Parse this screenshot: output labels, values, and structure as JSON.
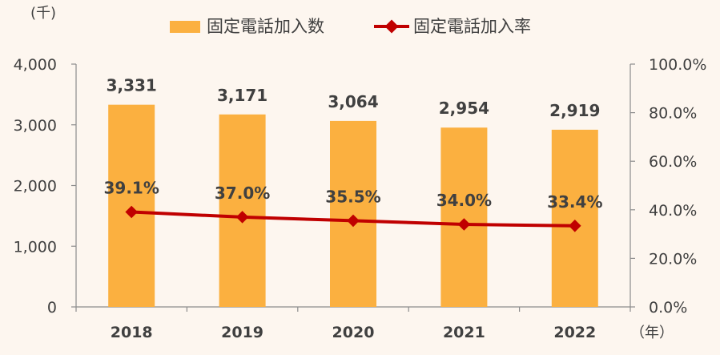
{
  "chart_data": {
    "type": "bar",
    "categories": [
      "2018",
      "2019",
      "2020",
      "2021",
      "2022"
    ],
    "series": [
      {
        "name": "固定電話加入数",
        "type": "bar",
        "axis": "left",
        "values": [
          3331,
          3171,
          3064,
          2954,
          2919
        ],
        "labels": [
          "3,331",
          "3,171",
          "3,064",
          "2,954",
          "2,919"
        ],
        "color": "#FBB040"
      },
      {
        "name": "固定電話加入率",
        "type": "line",
        "axis": "right",
        "values": [
          39.1,
          37.0,
          35.5,
          34.0,
          33.4
        ],
        "labels": [
          "39.1%",
          "37.0%",
          "35.5%",
          "34.0%",
          "33.4%"
        ],
        "color": "#C00000"
      }
    ],
    "y_left": {
      "unit_label": "(千)",
      "range": [
        0,
        4000
      ],
      "ticks": [
        0,
        1000,
        2000,
        3000,
        4000
      ],
      "tick_labels": [
        "0",
        "1,000",
        "2,000",
        "3,000",
        "4,000"
      ]
    },
    "y_right": {
      "range": [
        0,
        100
      ],
      "ticks": [
        0,
        20,
        40,
        60,
        80,
        100
      ],
      "tick_labels": [
        "0.0%",
        "20.0%",
        "40.0%",
        "60.0%",
        "80.0%",
        "100.0%"
      ]
    },
    "x_unit_label": "（年）",
    "legend_position": "top-center",
    "grid": false,
    "background": "#FDF6EF"
  }
}
